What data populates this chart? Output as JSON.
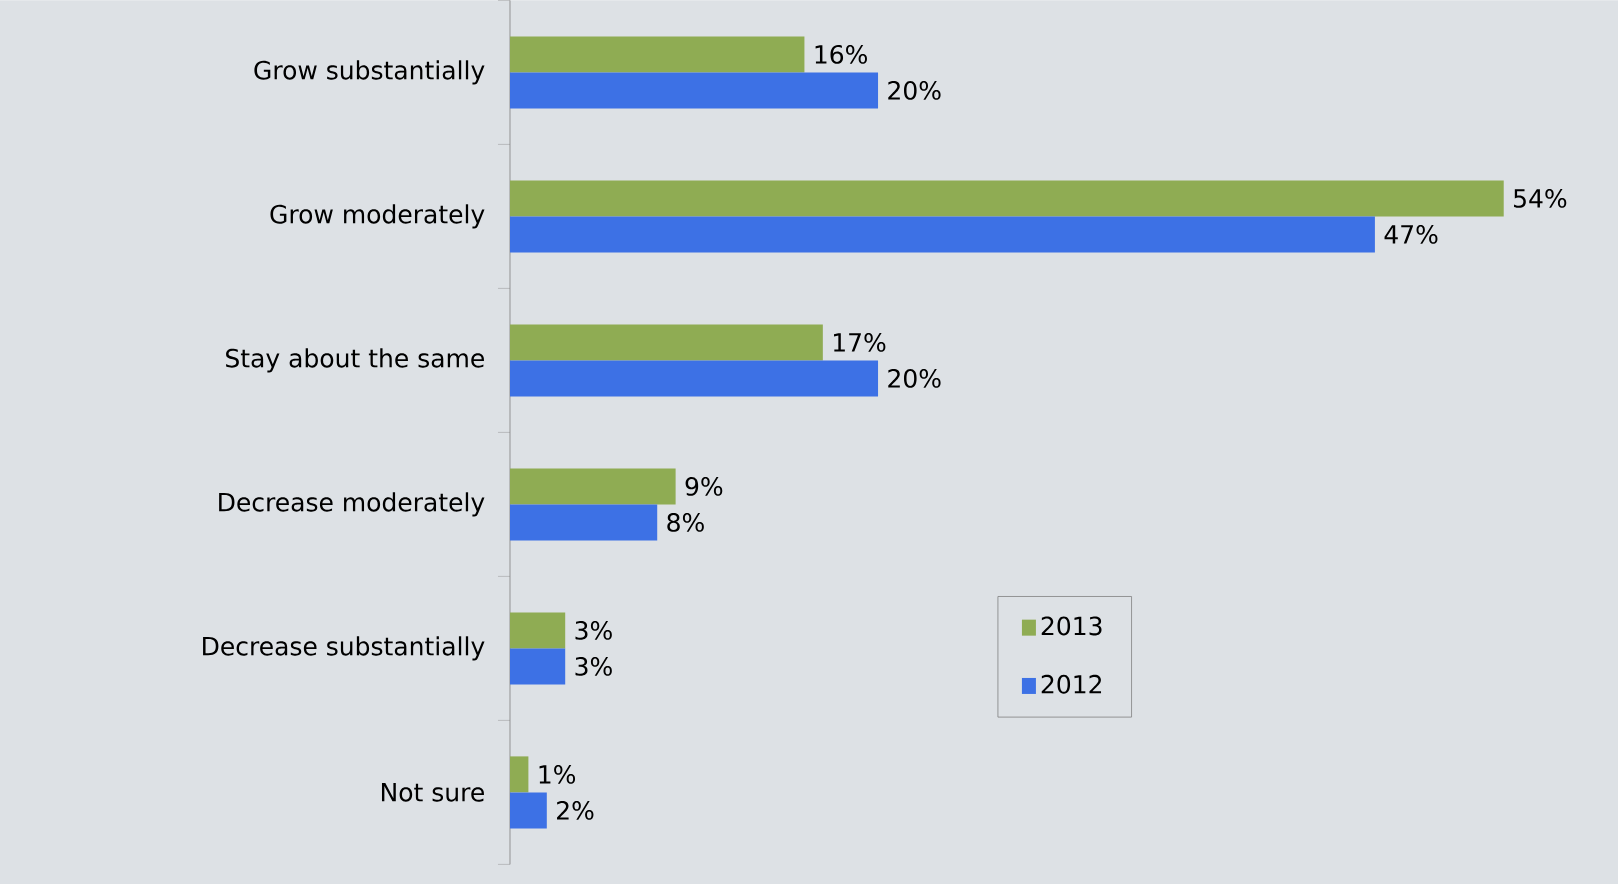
{
  "chart_data": {
    "type": "bar",
    "orientation": "horizontal",
    "categories": [
      "Grow substantially",
      "Grow moderately",
      "Stay about the same",
      "Decrease moderately",
      "Decrease substantially",
      "Not sure"
    ],
    "series": [
      {
        "name": "2013",
        "color": "#8fac53",
        "values": [
          16,
          54,
          17,
          9,
          3,
          1
        ],
        "value_labels": [
          "16%",
          "54%",
          "17%",
          "9%",
          "3%",
          "1%"
        ]
      },
      {
        "name": "2012",
        "color": "#3d71e5",
        "values": [
          20,
          47,
          20,
          8,
          3,
          2
        ],
        "value_labels": [
          "20%",
          "47%",
          "20%",
          "8%",
          "3%",
          "2%"
        ]
      }
    ],
    "legend": "bottom right"
  }
}
